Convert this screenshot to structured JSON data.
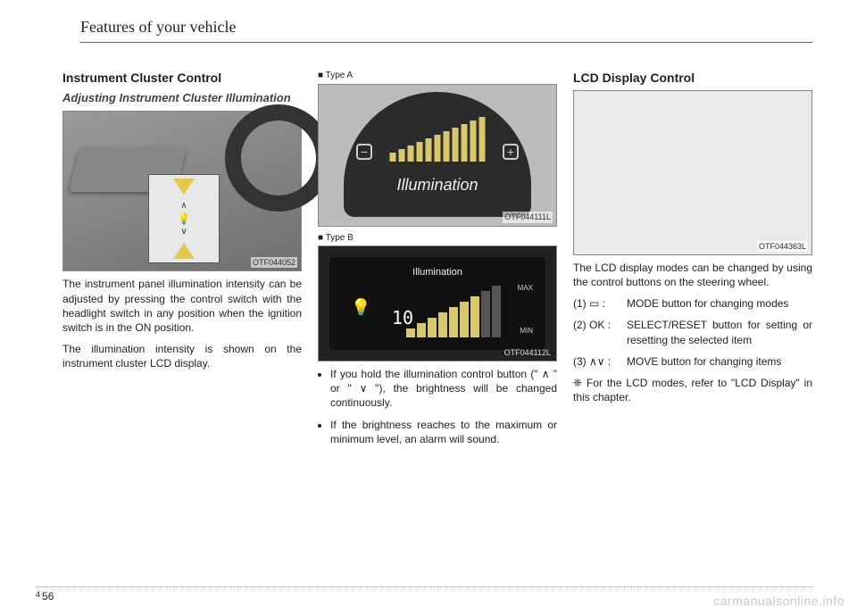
{
  "running_head": "Features of your vehicle",
  "footer": {
    "chapter": "4",
    "page": "56"
  },
  "watermark": "carmanualsonline.info",
  "col1": {
    "h1": "Instrument Cluster Control",
    "h2": "Adjusting Instrument Cluster Illumination",
    "fig_code": "OTF044052",
    "p1": "The instrument panel illumination intensity can be adjusted by pressing the control switch with the headlight switch in any position when the ignition switch is in the ON position.",
    "p2": "The illumination intensity is shown on the instrument cluster LCD display."
  },
  "col2": {
    "typeA_label": "■ Type A",
    "figA_code": "OTF044111L",
    "figA_word": "Illumination",
    "figA_bar_heights": [
      10,
      14,
      18,
      22,
      26,
      30,
      34,
      38,
      42,
      46,
      50
    ],
    "figA_bar_color": "#d7c96a",
    "typeB_label": "■ Type B",
    "figB_code": "OTF044112L",
    "figB_title": "Illumination",
    "figB_value": "10",
    "figB_max": "MAX",
    "figB_min": "MIN",
    "figB_bar_heights_on": [
      10,
      16,
      22,
      28,
      34,
      40,
      46
    ],
    "figB_bar_heights_off": [
      52,
      58
    ],
    "bul1": "If you hold the illumination control button (\" ∧ \" or \" ∨ \"), the brightness will be changed continuously.",
    "bul2": "If the brightness reaches to the maximum or minimum level, an alarm will sound."
  },
  "col3": {
    "h1": "LCD Display Control",
    "fig_code": "OTF044363L",
    "p1": "The LCD display modes can be changed by using the control buttons on the steering wheel.",
    "items": [
      {
        "k": "(1) ▭ :",
        "v": "MODE button for changing modes"
      },
      {
        "k": "(2) OK :",
        "v": "SELECT/RESET button for setting or resetting the selected item"
      },
      {
        "k": "(3) ∧∨ :",
        "v": "MOVE button for changing items"
      }
    ],
    "ref": "❈ For the LCD modes, refer to \"LCD Display\" in this chapter."
  }
}
